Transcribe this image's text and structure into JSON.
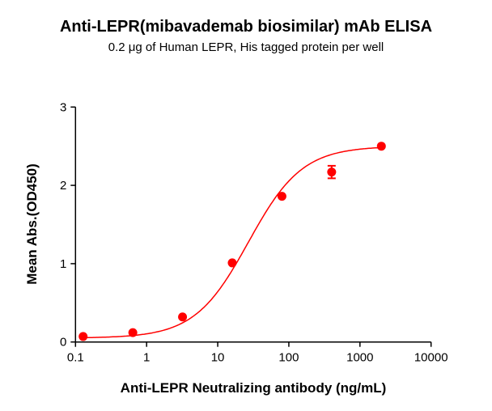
{
  "chart_data": {
    "type": "scatter",
    "title": "Anti-LEPR(mibavademab biosimilar) mAb ELISA",
    "subtitle": "0.2 μg of Human LEPR, His tagged protein per well",
    "xlabel": "Anti-LEPR Neutralizing antibody (ng/mL)",
    "ylabel": "Mean Abs.(OD450)",
    "xscale": "log",
    "xlim": [
      0.1,
      10000
    ],
    "ylim": [
      0,
      3
    ],
    "xticks": [
      "0.1",
      "1",
      "10",
      "100",
      "1000",
      "10000"
    ],
    "yticks": [
      "0",
      "1",
      "2",
      "3"
    ],
    "grid": false,
    "color": "#ff0000",
    "fit": "sigmoidal curve",
    "x": [
      0.128,
      0.64,
      3.2,
      16,
      80,
      400,
      2000
    ],
    "y": [
      0.07,
      0.12,
      0.32,
      1.01,
      1.86,
      2.17,
      2.5
    ],
    "error": [
      0,
      0,
      0,
      0,
      0,
      0.08,
      0
    ]
  }
}
